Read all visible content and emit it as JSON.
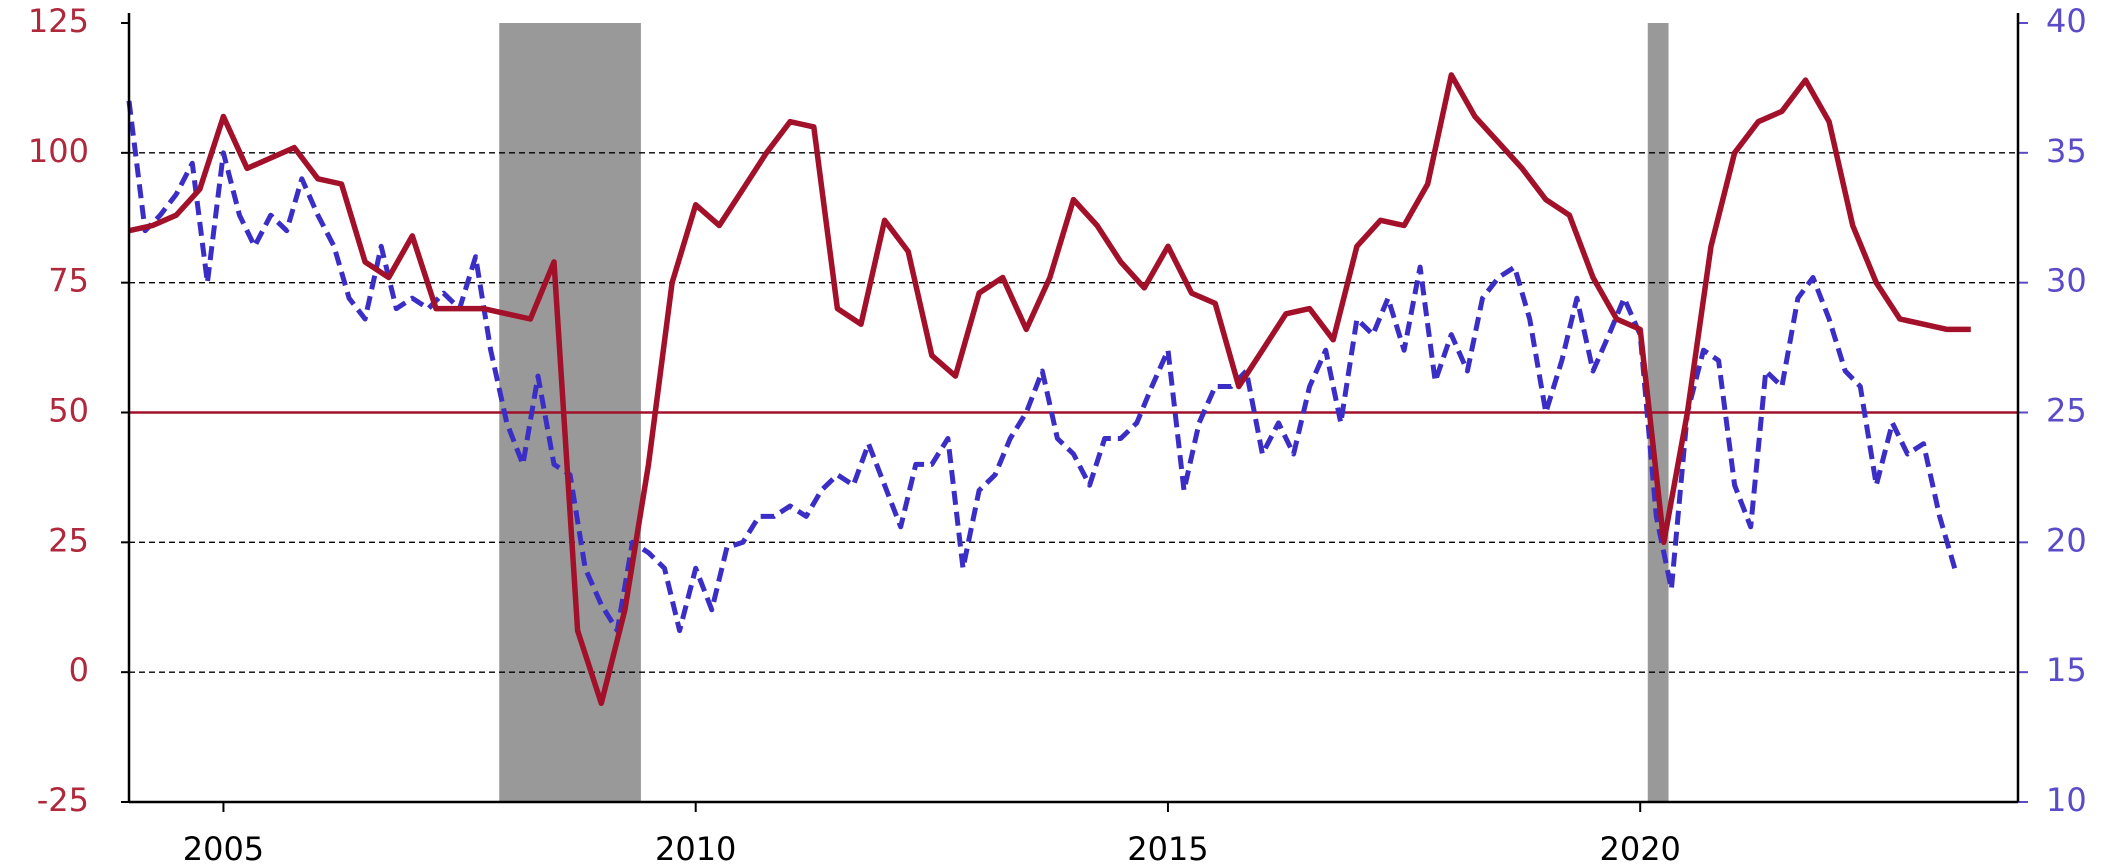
{
  "chart_data": {
    "type": "line",
    "xlim": [
      2004,
      2024
    ],
    "xticks": [
      2005,
      2010,
      2015,
      2020
    ],
    "ylim": [
      -25,
      125
    ],
    "yticks": [
      -25,
      0,
      25,
      50,
      75,
      100,
      125
    ],
    "y2lim": [
      10,
      40
    ],
    "y2ticks": [
      10,
      15,
      20,
      25,
      30,
      35,
      40
    ],
    "grid": true,
    "reference_line": 50,
    "reference_color": "#a3102a",
    "shaded_periods": [
      [
        2007.92,
        2009.42
      ],
      [
        2020.08,
        2020.3
      ]
    ],
    "shade_color": "#999999",
    "series": [
      {
        "color": "#a3102a",
        "line_style": "solid",
        "x": [
          2004.0,
          2004.25,
          2004.5,
          2004.75,
          2005.0,
          2005.25,
          2005.5,
          2005.75,
          2006.0,
          2006.25,
          2006.5,
          2006.75,
          2007.0,
          2007.25,
          2007.5,
          2007.75,
          2008.0,
          2008.25,
          2008.5,
          2008.75,
          2009.0,
          2009.25,
          2009.5,
          2009.75,
          2010.0,
          2010.25,
          2010.5,
          2010.75,
          2011.0,
          2011.25,
          2011.5,
          2011.75,
          2012.0,
          2012.25,
          2012.5,
          2012.75,
          2013.0,
          2013.25,
          2013.5,
          2013.75,
          2014.0,
          2014.25,
          2014.5,
          2014.75,
          2015.0,
          2015.25,
          2015.5,
          2015.75,
          2016.0,
          2016.25,
          2016.5,
          2016.75,
          2017.0,
          2017.25,
          2017.5,
          2017.75,
          2018.0,
          2018.25,
          2018.5,
          2018.75,
          2019.0,
          2019.25,
          2019.5,
          2019.75,
          2020.0,
          2020.25,
          2020.5,
          2020.75,
          2021.0,
          2021.25,
          2021.5,
          2021.75,
          2022.0,
          2022.25,
          2022.5,
          2022.75,
          2023.0,
          2023.25,
          2023.5
        ],
        "values": [
          85,
          86,
          88,
          93,
          107,
          97,
          99,
          101,
          95,
          94,
          79,
          76,
          84,
          70,
          70,
          70,
          69,
          68,
          79,
          8,
          -6,
          12,
          40,
          75,
          90,
          86,
          93,
          100,
          106,
          105,
          70,
          67,
          87,
          81,
          61,
          57,
          73,
          76,
          66,
          76,
          91,
          86,
          79,
          74,
          82,
          73,
          71,
          55,
          62,
          69,
          70,
          64,
          82,
          87,
          86,
          94,
          115,
          107,
          102,
          97,
          91,
          88,
          76,
          68,
          66,
          25,
          50,
          82,
          100,
          106,
          108,
          114,
          106,
          86,
          75,
          68,
          67,
          66,
          66
        ]
      },
      {
        "color": "#3b2ec7",
        "line_style": "dashed",
        "axis": "y2",
        "x": [
          2004.0,
          2004.17,
          2004.33,
          2004.5,
          2004.67,
          2004.83,
          2005.0,
          2005.17,
          2005.33,
          2005.5,
          2005.67,
          2005.83,
          2006.0,
          2006.17,
          2006.33,
          2006.5,
          2006.67,
          2006.83,
          2007.0,
          2007.17,
          2007.33,
          2007.5,
          2007.67,
          2007.83,
          2008.0,
          2008.17,
          2008.33,
          2008.5,
          2008.67,
          2008.83,
          2009.0,
          2009.17,
          2009.33,
          2009.5,
          2009.67,
          2009.83,
          2010.0,
          2010.17,
          2010.33,
          2010.5,
          2010.67,
          2010.83,
          2011.0,
          2011.17,
          2011.33,
          2011.5,
          2011.67,
          2011.83,
          2012.0,
          2012.17,
          2012.33,
          2012.5,
          2012.67,
          2012.83,
          2013.0,
          2013.17,
          2013.33,
          2013.5,
          2013.67,
          2013.83,
          2014.0,
          2014.17,
          2014.33,
          2014.5,
          2014.67,
          2014.83,
          2015.0,
          2015.17,
          2015.33,
          2015.5,
          2015.67,
          2015.83,
          2016.0,
          2016.17,
          2016.33,
          2016.5,
          2016.67,
          2016.83,
          2017.0,
          2017.17,
          2017.33,
          2017.5,
          2017.67,
          2017.83,
          2018.0,
          2018.17,
          2018.33,
          2018.5,
          2018.67,
          2018.83,
          2019.0,
          2019.17,
          2019.33,
          2019.5,
          2019.67,
          2019.83,
          2020.0,
          2020.17,
          2020.33,
          2020.5,
          2020.67,
          2020.83,
          2021.0,
          2021.17,
          2021.33,
          2021.5,
          2021.67,
          2021.83,
          2022.0,
          2022.17,
          2022.33,
          2022.5,
          2022.67,
          2022.83,
          2023.0,
          2023.17,
          2023.33
        ],
        "values": [
          37,
          32,
          32.6,
          33.4,
          34.6,
          30,
          35,
          32.6,
          31.4,
          32.6,
          32,
          34,
          32.6,
          31.4,
          29.4,
          28.6,
          31.4,
          29,
          29.4,
          29,
          29.6,
          29,
          31,
          27.4,
          24.6,
          23,
          26.4,
          23,
          22.6,
          19,
          17.6,
          16.6,
          20,
          19.6,
          19,
          16.6,
          19,
          17.4,
          19.8,
          20,
          21,
          21,
          21.4,
          21,
          22,
          22.6,
          22.2,
          23.8,
          22.2,
          20.6,
          23,
          23,
          24,
          19,
          22,
          22.6,
          24,
          25,
          26.6,
          24,
          23.4,
          22.2,
          24,
          24,
          24.6,
          26,
          27.4,
          22,
          24.6,
          26,
          26,
          26.6,
          23.4,
          24.6,
          23.4,
          26,
          27.4,
          24.6,
          28.6,
          28,
          29.4,
          27.4,
          30.6,
          26.2,
          28,
          26.6,
          29.4,
          30.2,
          30.6,
          28.6,
          25,
          27,
          29.4,
          26.6,
          28,
          29.4,
          28,
          21,
          18.2,
          25,
          27.4,
          27,
          22.2,
          20.6,
          26.6,
          26,
          29.4,
          30.2,
          28.6,
          26.6,
          26,
          22.2,
          24.6,
          23.4,
          23.8,
          21,
          19
        ]
      }
    ]
  }
}
